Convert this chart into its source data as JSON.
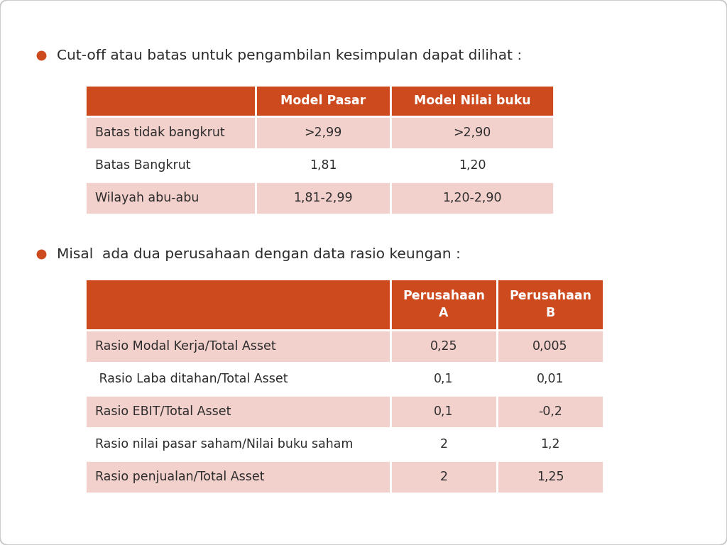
{
  "bg_color": "#ffffff",
  "bullet_color": "#cc4a1e",
  "text_color": "#2c2c2c",
  "header_bg": "#cc4a1e",
  "header_text": "#ffffff",
  "row_bg_light": "#f2d0cc",
  "row_bg_white": "#ffffff",
  "bullet1": "Cut-off atau batas untuk pengambilan kesimpulan dapat dilihat :",
  "bullet2": "Misal  ada dua perusahaan dengan data rasio keungan :",
  "table1_headers": [
    "",
    "Model Pasar",
    "Model Nilai buku"
  ],
  "table1_rows": [
    [
      "Batas tidak bangkrut",
      ">2,99",
      ">2,90"
    ],
    [
      "Batas Bangkrut",
      "1,81",
      "1,20"
    ],
    [
      "Wilayah abu-abu",
      "1,81-2,99",
      "1,20-2,90"
    ]
  ],
  "table1_row_colors": [
    0,
    1,
    0
  ],
  "table2_headers": [
    "",
    "Perusahaan\nA",
    "Perusahaan\nB"
  ],
  "table2_rows": [
    [
      "Rasio Modal Kerja/Total Asset",
      "0,25",
      "0,005"
    ],
    [
      " Rasio Laba ditahan/Total Asset",
      "0,1",
      "0,01"
    ],
    [
      "Rasio EBIT/Total Asset",
      "0,1",
      "-0,2"
    ],
    [
      "Rasio nilai pasar saham/Nilai buku saham",
      "2",
      "1,2"
    ],
    [
      "Rasio penjualan/Total Asset",
      "2",
      "1,25"
    ]
  ],
  "table2_row_colors": [
    0,
    1,
    0,
    1,
    0
  ]
}
